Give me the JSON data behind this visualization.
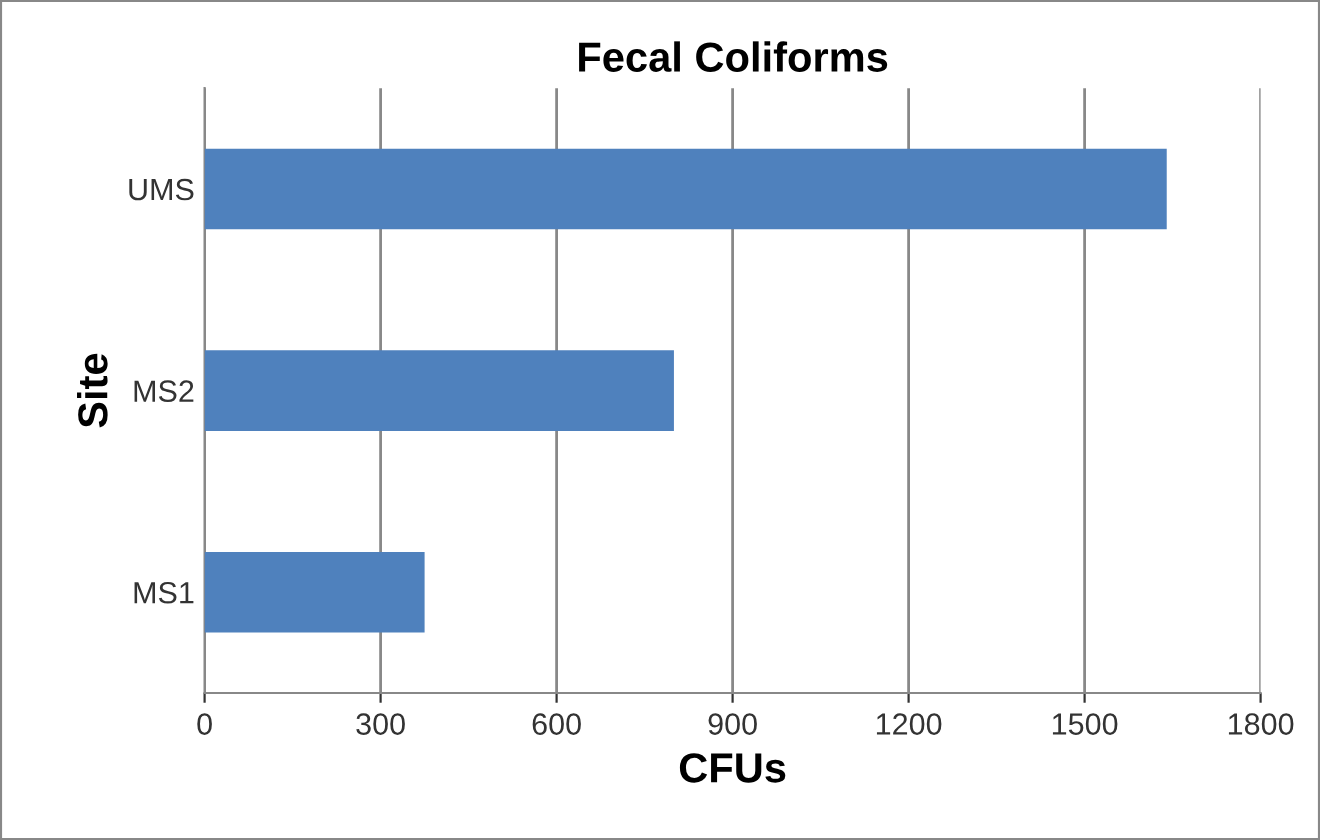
{
  "chart_data": {
    "type": "bar",
    "orientation": "horizontal",
    "title": "Fecal Coliforms",
    "xlabel": "CFUs",
    "ylabel": "Site",
    "categories": [
      "UMS",
      "MS2",
      "MS1"
    ],
    "values": [
      1640,
      800,
      375
    ],
    "color": "#4f81bd",
    "xlim": [
      0,
      1800
    ],
    "xticks": [
      0,
      300,
      600,
      900,
      1200,
      1500,
      1800
    ],
    "grid": "x"
  }
}
